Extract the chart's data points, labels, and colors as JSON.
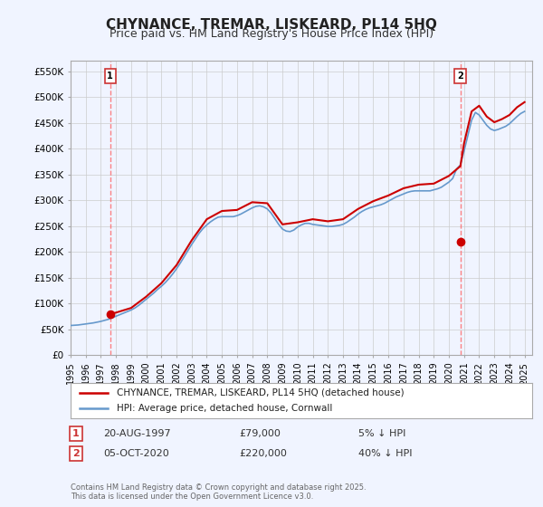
{
  "title": "CHYNANCE, TREMAR, LISKEARD, PL14 5HQ",
  "subtitle": "Price paid vs. HM Land Registry's House Price Index (HPI)",
  "ylabel_ticks": [
    "£0",
    "£50K",
    "£100K",
    "£150K",
    "£200K",
    "£250K",
    "£300K",
    "£350K",
    "£400K",
    "£450K",
    "£500K",
    "£550K"
  ],
  "ytick_values": [
    0,
    50000,
    100000,
    150000,
    200000,
    250000,
    300000,
    350000,
    400000,
    450000,
    500000,
    550000
  ],
  "ylim": [
    0,
    570000
  ],
  "xlim_start": 1995.0,
  "xlim_end": 2025.5,
  "xtick_years": [
    1995,
    1996,
    1997,
    1998,
    1999,
    2000,
    2001,
    2002,
    2003,
    2004,
    2005,
    2006,
    2007,
    2008,
    2009,
    2010,
    2011,
    2012,
    2013,
    2014,
    2015,
    2016,
    2017,
    2018,
    2019,
    2020,
    2021,
    2022,
    2023,
    2024,
    2025
  ],
  "legend_line1": "CHYNANCE, TREMAR, LISKEARD, PL14 5HQ (detached house)",
  "legend_line2": "HPI: Average price, detached house, Cornwall",
  "legend_color1": "#cc0000",
  "legend_color2": "#6699cc",
  "note1_num": "1",
  "note1_date": "20-AUG-1997",
  "note1_price": "£79,000",
  "note1_hpi": "5% ↓ HPI",
  "note1_year": 1997.62,
  "note2_num": "2",
  "note2_date": "05-OCT-2020",
  "note2_price": "£220,000",
  "note2_hpi": "40% ↓ HPI",
  "note2_year": 2020.76,
  "copyright": "Contains HM Land Registry data © Crown copyright and database right 2025.\nThis data is licensed under the Open Government Licence v3.0.",
  "bg_color": "#f0f4ff",
  "plot_bg": "#ffffff",
  "grid_color": "#cccccc",
  "title_fontsize": 11,
  "subtitle_fontsize": 9,
  "hpi_years": [
    1995.0,
    1995.25,
    1995.5,
    1995.75,
    1996.0,
    1996.25,
    1996.5,
    1996.75,
    1997.0,
    1997.25,
    1997.5,
    1997.75,
    1998.0,
    1998.25,
    1998.5,
    1998.75,
    1999.0,
    1999.25,
    1999.5,
    1999.75,
    2000.0,
    2000.25,
    2000.5,
    2000.75,
    2001.0,
    2001.25,
    2001.5,
    2001.75,
    2002.0,
    2002.25,
    2002.5,
    2002.75,
    2003.0,
    2003.25,
    2003.5,
    2003.75,
    2004.0,
    2004.25,
    2004.5,
    2004.75,
    2005.0,
    2005.25,
    2005.5,
    2005.75,
    2006.0,
    2006.25,
    2006.5,
    2006.75,
    2007.0,
    2007.25,
    2007.5,
    2007.75,
    2008.0,
    2008.25,
    2008.5,
    2008.75,
    2009.0,
    2009.25,
    2009.5,
    2009.75,
    2010.0,
    2010.25,
    2010.5,
    2010.75,
    2011.0,
    2011.25,
    2011.5,
    2011.75,
    2012.0,
    2012.25,
    2012.5,
    2012.75,
    2013.0,
    2013.25,
    2013.5,
    2013.75,
    2014.0,
    2014.25,
    2014.5,
    2014.75,
    2015.0,
    2015.25,
    2015.5,
    2015.75,
    2016.0,
    2016.25,
    2016.5,
    2016.75,
    2017.0,
    2017.25,
    2017.5,
    2017.75,
    2018.0,
    2018.25,
    2018.5,
    2018.75,
    2019.0,
    2019.25,
    2019.5,
    2019.75,
    2020.0,
    2020.25,
    2020.5,
    2020.75,
    2021.0,
    2021.25,
    2021.5,
    2021.75,
    2022.0,
    2022.25,
    2022.5,
    2022.75,
    2023.0,
    2023.25,
    2023.5,
    2023.75,
    2024.0,
    2024.25,
    2024.5,
    2024.75,
    2025.0
  ],
  "hpi_values": [
    57000,
    57500,
    58000,
    59000,
    60000,
    61000,
    62000,
    63500,
    65000,
    67000,
    69000,
    72000,
    75000,
    78000,
    81000,
    84000,
    87000,
    91000,
    96000,
    102000,
    108000,
    114000,
    120000,
    127000,
    133000,
    140000,
    148000,
    157000,
    167000,
    178000,
    190000,
    202000,
    214000,
    225000,
    236000,
    245000,
    252000,
    258000,
    263000,
    267000,
    268000,
    268000,
    268000,
    268000,
    270000,
    273000,
    277000,
    281000,
    285000,
    288000,
    289000,
    287000,
    283000,
    275000,
    264000,
    253000,
    244000,
    240000,
    239000,
    242000,
    248000,
    252000,
    255000,
    255000,
    253000,
    252000,
    251000,
    250000,
    249000,
    249000,
    250000,
    251000,
    253000,
    257000,
    262000,
    267000,
    273000,
    278000,
    282000,
    285000,
    287000,
    289000,
    291000,
    294000,
    298000,
    302000,
    306000,
    309000,
    312000,
    315000,
    317000,
    318000,
    318000,
    318000,
    318000,
    318000,
    320000,
    322000,
    325000,
    330000,
    335000,
    342000,
    360000,
    368000,
    395000,
    425000,
    455000,
    470000,
    465000,
    455000,
    445000,
    438000,
    435000,
    437000,
    440000,
    443000,
    448000,
    455000,
    462000,
    468000,
    472000
  ],
  "price_paid_years": [
    1997.62,
    2020.76
  ],
  "price_paid_values": [
    79000,
    220000
  ],
  "hpi_indexed_years": [
    1997.62,
    1998.0,
    1999.0,
    2000.0,
    2001.0,
    2002.0,
    2003.0,
    2004.0,
    2005.0,
    2006.0,
    2007.0,
    2008.0,
    2009.0,
    2010.0,
    2011.0,
    2012.0,
    2013.0,
    2014.0,
    2015.0,
    2016.0,
    2017.0,
    2018.0,
    2019.0,
    2020.0,
    2020.76,
    2021.0,
    2021.5,
    2022.0,
    2022.5,
    2023.0,
    2023.5,
    2024.0,
    2024.5,
    2025.0
  ],
  "hpi_indexed_values": [
    79000,
    82000,
    91000,
    113000,
    139000,
    174000,
    222000,
    263000,
    279000,
    281000,
    296000,
    294000,
    253000,
    257000,
    263000,
    259000,
    263000,
    283000,
    298000,
    309000,
    323000,
    330000,
    332000,
    347000,
    366000,
    410000,
    472000,
    483000,
    462000,
    451000,
    457000,
    465000,
    480000,
    490000
  ]
}
